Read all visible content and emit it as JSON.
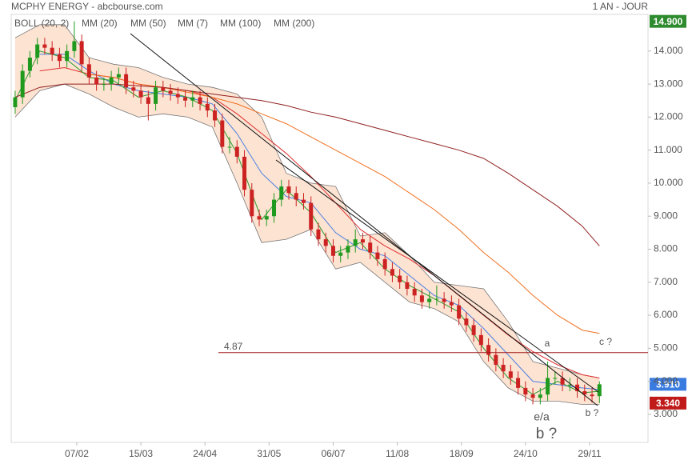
{
  "chart_data": {
    "type": "candlestick",
    "title": "MCPHY ENERGY - abcbourse.com",
    "subtitle": "1 AN - JOUR",
    "xlim": [
      0.4,
      258.7
    ],
    "ylim": [
      2.15,
      15.11
    ],
    "xticks": [
      {
        "value": 27,
        "label": "07/02"
      },
      {
        "value": 53,
        "label": "15/03"
      },
      {
        "value": 79,
        "label": "24/04"
      },
      {
        "value": 105,
        "label": "31/05"
      },
      {
        "value": 131,
        "label": "06/07"
      },
      {
        "value": 157,
        "label": "11/08"
      },
      {
        "value": 183,
        "label": "18/09"
      },
      {
        "value": 209,
        "label": "24/10"
      },
      {
        "value": 235,
        "label": "29/11"
      }
    ],
    "yticks": [
      {
        "value": 3,
        "label": "3.000"
      },
      {
        "value": 4,
        "label": "4.000"
      },
      {
        "value": 5,
        "label": "5.000"
      },
      {
        "value": 6,
        "label": "6.000"
      },
      {
        "value": 7,
        "label": "7.000"
      },
      {
        "value": 8,
        "label": "8.000"
      },
      {
        "value": 9,
        "label": "9.000"
      },
      {
        "value": 10,
        "label": "10.000"
      },
      {
        "value": 11,
        "label": "11.000"
      },
      {
        "value": 12,
        "label": "12.000"
      },
      {
        "value": 13,
        "label": "13.000"
      },
      {
        "value": 14,
        "label": "14.000"
      }
    ],
    "candles": {
      "up_color": "#1f9a1f",
      "down_color": "#cc2222",
      "x": [
        2,
        5,
        8,
        11,
        14,
        17,
        20,
        23,
        26,
        29,
        32,
        35,
        38,
        41,
        44,
        47,
        50,
        53,
        56,
        59,
        62,
        65,
        68,
        71,
        74,
        77,
        80,
        83,
        86,
        89,
        92,
        95,
        98,
        101,
        104,
        107,
        110,
        113,
        116,
        119,
        122,
        125,
        128,
        131,
        134,
        137,
        140,
        143,
        146,
        149,
        152,
        155,
        158,
        161,
        164,
        167,
        170,
        173,
        176,
        179,
        182,
        185,
        188,
        191,
        194,
        197,
        200,
        203,
        206,
        209,
        212,
        215,
        218,
        221,
        224,
        227,
        230,
        233,
        236,
        239
      ],
      "open": [
        12.3,
        12.6,
        13.4,
        13.8,
        14.2,
        14.1,
        13.9,
        13.7,
        14.0,
        14.3,
        13.6,
        13.2,
        13.0,
        13.0,
        13.2,
        13.3,
        12.9,
        12.8,
        12.6,
        12.4,
        12.9,
        12.8,
        12.7,
        12.6,
        12.5,
        12.6,
        12.4,
        12.2,
        11.9,
        11.1,
        11.1,
        10.8,
        9.8,
        9.0,
        8.9,
        9.0,
        9.5,
        9.9,
        9.7,
        9.5,
        9.4,
        8.6,
        8.3,
        8.1,
        7.8,
        7.9,
        8.1,
        8.3,
        8.2,
        7.9,
        7.7,
        7.4,
        7.2,
        7.0,
        6.8,
        6.6,
        6.4,
        6.5,
        6.5,
        6.4,
        6.3,
        5.9,
        5.7,
        5.4,
        5.1,
        4.8,
        4.5,
        4.3,
        4.1,
        3.8,
        3.6,
        3.5,
        3.6,
        4.1,
        4.1,
        3.9,
        3.9,
        3.7,
        3.6,
        3.55
      ],
      "high": [
        12.8,
        13.6,
        14.0,
        14.4,
        14.4,
        14.3,
        14.1,
        14.2,
        14.9,
        14.5,
        13.8,
        13.4,
        13.2,
        13.4,
        13.5,
        13.5,
        13.1,
        13.0,
        12.8,
        13.1,
        13.1,
        13.0,
        12.9,
        12.8,
        12.8,
        12.8,
        12.6,
        12.4,
        12.1,
        11.4,
        11.3,
        11.0,
        10.0,
        9.2,
        9.2,
        9.7,
        10.1,
        10.1,
        9.9,
        9.7,
        9.6,
        8.8,
        8.5,
        8.3,
        8.1,
        8.3,
        8.6,
        8.5,
        8.4,
        8.1,
        7.9,
        7.6,
        7.4,
        7.2,
        7.0,
        6.8,
        6.7,
        6.9,
        6.7,
        6.6,
        6.5,
        6.1,
        5.9,
        5.6,
        5.3,
        5.0,
        4.7,
        4.5,
        4.3,
        4.0,
        3.8,
        3.8,
        4.6,
        4.3,
        4.3,
        4.1,
        4.1,
        3.9,
        3.8,
        4.0
      ],
      "low": [
        12.1,
        12.4,
        13.2,
        13.6,
        13.9,
        13.7,
        13.5,
        13.5,
        13.8,
        13.4,
        13.0,
        12.8,
        12.8,
        12.8,
        13.0,
        12.7,
        12.6,
        12.4,
        11.9,
        12.2,
        12.6,
        12.5,
        12.4,
        12.3,
        12.3,
        12.2,
        12.0,
        11.7,
        10.9,
        10.9,
        10.6,
        9.6,
        8.8,
        8.7,
        8.7,
        8.8,
        9.3,
        9.5,
        9.3,
        9.2,
        8.4,
        8.1,
        7.9,
        7.6,
        7.6,
        7.7,
        7.9,
        8.0,
        7.7,
        7.5,
        7.2,
        7.0,
        6.8,
        6.6,
        6.4,
        6.2,
        6.2,
        6.3,
        6.2,
        6.1,
        5.7,
        5.5,
        5.2,
        4.9,
        4.6,
        4.3,
        4.1,
        3.9,
        3.6,
        3.4,
        3.3,
        3.3,
        3.4,
        3.9,
        3.7,
        3.7,
        3.5,
        3.4,
        3.35,
        3.34
      ],
      "close": [
        12.6,
        13.4,
        13.8,
        14.2,
        14.1,
        13.9,
        13.7,
        14.0,
        14.3,
        13.6,
        13.2,
        13.0,
        13.0,
        13.2,
        13.3,
        12.9,
        12.8,
        12.6,
        12.4,
        12.9,
        12.8,
        12.7,
        12.6,
        12.5,
        12.6,
        12.4,
        12.2,
        11.9,
        11.1,
        11.1,
        10.8,
        9.8,
        9.0,
        8.9,
        9.0,
        9.5,
        9.9,
        9.7,
        9.5,
        9.4,
        8.6,
        8.3,
        8.1,
        7.8,
        7.9,
        8.1,
        8.3,
        8.2,
        7.9,
        7.7,
        7.4,
        7.2,
        7.0,
        6.8,
        6.6,
        6.4,
        6.5,
        6.5,
        6.4,
        6.3,
        5.9,
        5.7,
        5.4,
        5.1,
        4.8,
        4.5,
        4.3,
        4.1,
        3.8,
        3.6,
        3.5,
        3.6,
        4.1,
        4.1,
        3.9,
        3.9,
        3.7,
        3.6,
        3.55,
        3.91
      ]
    },
    "line_x": [
      2,
      12,
      22,
      32,
      42,
      52,
      62,
      72,
      82,
      92,
      102,
      112,
      122,
      132,
      142,
      152,
      162,
      172,
      182,
      192,
      202,
      212,
      222,
      232,
      239
    ],
    "band": {
      "name": "BOLL (20, 2)",
      "color": "#777777",
      "fill": "#fde3d2",
      "upper": [
        14.4,
        14.8,
        14.8,
        13.8,
        13.6,
        13.5,
        13.2,
        13.0,
        12.9,
        12.7,
        12.0,
        10.3,
        10.0,
        9.9,
        8.4,
        8.5,
        7.8,
        7.0,
        6.9,
        6.8,
        5.8,
        4.6,
        4.4,
        4.2,
        4.1
      ],
      "lower": [
        12.0,
        12.8,
        13.0,
        12.7,
        12.3,
        12.0,
        12.1,
        12.0,
        11.7,
        10.0,
        8.2,
        8.3,
        8.6,
        7.4,
        7.6,
        7.0,
        6.4,
        6.2,
        5.8,
        4.6,
        3.8,
        3.4,
        3.4,
        3.3,
        3.3
      ]
    },
    "series": [
      {
        "name": "MM (20)",
        "color": "#4a7fe0",
        "values": [
          null,
          13.9,
          13.9,
          13.4,
          13.0,
          12.8,
          12.7,
          12.6,
          12.4,
          11.5,
          10.3,
          9.6,
          9.4,
          8.5,
          8.0,
          7.8,
          7.2,
          6.6,
          6.3,
          5.6,
          4.8,
          4.0,
          3.9,
          3.8,
          3.75
        ]
      },
      {
        "name": "MM (50)",
        "color": "#e03030",
        "values": [
          null,
          13.4,
          13.5,
          13.3,
          13.2,
          13.0,
          12.9,
          12.8,
          12.6,
          12.1,
          11.5,
          10.9,
          10.2,
          9.4,
          8.6,
          8.1,
          7.7,
          7.2,
          6.6,
          6.0,
          5.4,
          4.9,
          4.5,
          4.2,
          4.1
        ]
      },
      {
        "name": "MM (7)",
        "color": "#2a9a2a",
        "values": [
          12.5,
          14.0,
          13.8,
          13.2,
          13.1,
          12.6,
          12.8,
          12.6,
          12.2,
          10.9,
          8.9,
          9.8,
          9.1,
          7.9,
          8.2,
          7.4,
          6.9,
          6.5,
          6.1,
          5.0,
          4.1,
          3.6,
          4.0,
          3.65,
          3.7
        ]
      },
      {
        "name": "MM (100)",
        "color": "#f07020",
        "values": [
          null,
          null,
          null,
          13.3,
          13.2,
          13.0,
          12.9,
          12.75,
          12.6,
          12.4,
          12.1,
          11.8,
          11.4,
          11.0,
          10.6,
          10.2,
          9.7,
          9.2,
          8.6,
          7.9,
          7.3,
          6.6,
          6.0,
          5.55,
          5.45
        ]
      },
      {
        "name": "MM (200)",
        "color": "#902020",
        "values": [
          12.6,
          12.9,
          13.0,
          13.0,
          13.0,
          12.95,
          12.9,
          12.8,
          12.7,
          12.6,
          12.5,
          12.35,
          12.15,
          12.0,
          11.8,
          11.6,
          11.4,
          11.2,
          11.0,
          10.75,
          10.3,
          9.8,
          9.3,
          8.7,
          8.1
        ]
      }
    ],
    "hline": {
      "value": 4.87,
      "label": "4.87",
      "color": "#a01818"
    },
    "annotations": [
      {
        "text": "a",
        "color": "#2a2aa0"
      },
      {
        "text": "c ?",
        "color": "#2a2aa0"
      },
      {
        "text": "b ?",
        "color": "#2a2aa0"
      },
      {
        "text": "e/a",
        "color": "#c02020"
      },
      {
        "text": "b ?",
        "color": "#2a2aa0"
      }
    ],
    "price_tags": [
      {
        "value": 14.9,
        "label": "14.900",
        "color": "#2e8b2e"
      },
      {
        "value": 3.91,
        "label": "3.910",
        "color": "#3a7be0"
      },
      {
        "value": 3.34,
        "label": "3.340",
        "color": "#c01a1a"
      }
    ]
  }
}
